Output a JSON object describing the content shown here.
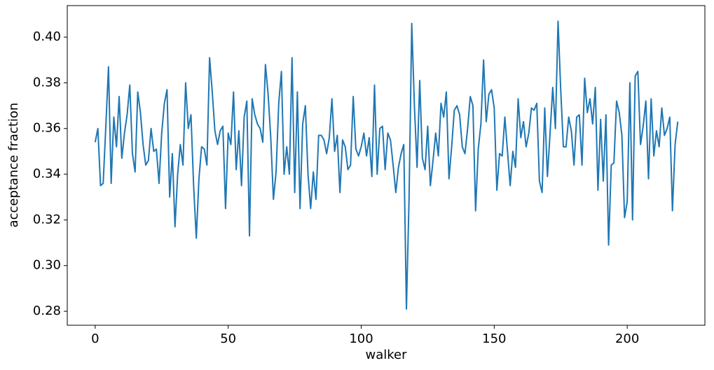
{
  "chart_data": {
    "type": "line",
    "xlabel": "walker",
    "ylabel": "acceptance fraction",
    "x": [
      0,
      1,
      2,
      3,
      4,
      5,
      6,
      7,
      8,
      9,
      10,
      11,
      12,
      13,
      14,
      15,
      16,
      17,
      18,
      19,
      20,
      21,
      22,
      23,
      24,
      25,
      26,
      27,
      28,
      29,
      30,
      31,
      32,
      33,
      34,
      35,
      36,
      37,
      38,
      39,
      40,
      41,
      42,
      43,
      44,
      45,
      46,
      47,
      48,
      49,
      50,
      51,
      52,
      53,
      54,
      55,
      56,
      57,
      58,
      59,
      60,
      61,
      62,
      63,
      64,
      65,
      66,
      67,
      68,
      69,
      70,
      71,
      72,
      73,
      74,
      75,
      76,
      77,
      78,
      79,
      80,
      81,
      82,
      83,
      84,
      85,
      86,
      87,
      88,
      89,
      90,
      91,
      92,
      93,
      94,
      95,
      96,
      97,
      98,
      99,
      100,
      101,
      102,
      103,
      104,
      105,
      106,
      107,
      108,
      109,
      110,
      111,
      112,
      113,
      114,
      115,
      116,
      117,
      118,
      119,
      120,
      121,
      122,
      123,
      124,
      125,
      126,
      127,
      128,
      129,
      130,
      131,
      132,
      133,
      134,
      135,
      136,
      137,
      138,
      139,
      140,
      141,
      142,
      143,
      144,
      145,
      146,
      147,
      148,
      149,
      150,
      151,
      152,
      153,
      154,
      155,
      156,
      157,
      158,
      159,
      160,
      161,
      162,
      163,
      164,
      165,
      166,
      167,
      168,
      169,
      170,
      171,
      172,
      173,
      174,
      175,
      176,
      177,
      178,
      179,
      180,
      181,
      182,
      183,
      184,
      185,
      186,
      187,
      188,
      189,
      190,
      191,
      192,
      193,
      194,
      195,
      196,
      197,
      198,
      199,
      200,
      201,
      202,
      203,
      204,
      205,
      206,
      207,
      208,
      209,
      210,
      211,
      212,
      213,
      214,
      215,
      216,
      217,
      218,
      219
    ],
    "series": [
      {
        "color": "#1f77b4",
        "values": [
          0.354,
          0.36,
          0.335,
          0.336,
          0.361,
          0.387,
          0.336,
          0.365,
          0.352,
          0.374,
          0.347,
          0.358,
          0.366,
          0.379,
          0.349,
          0.341,
          0.376,
          0.367,
          0.353,
          0.344,
          0.346,
          0.36,
          0.35,
          0.351,
          0.336,
          0.358,
          0.371,
          0.377,
          0.33,
          0.349,
          0.317,
          0.34,
          0.353,
          0.344,
          0.38,
          0.36,
          0.366,
          0.335,
          0.312,
          0.338,
          0.352,
          0.351,
          0.344,
          0.391,
          0.376,
          0.359,
          0.353,
          0.359,
          0.361,
          0.325,
          0.358,
          0.353,
          0.376,
          0.342,
          0.359,
          0.335,
          0.365,
          0.372,
          0.313,
          0.373,
          0.366,
          0.362,
          0.36,
          0.354,
          0.388,
          0.375,
          0.356,
          0.329,
          0.341,
          0.371,
          0.385,
          0.34,
          0.352,
          0.34,
          0.391,
          0.332,
          0.376,
          0.325,
          0.362,
          0.37,
          0.34,
          0.325,
          0.341,
          0.329,
          0.357,
          0.357,
          0.355,
          0.349,
          0.356,
          0.373,
          0.35,
          0.357,
          0.332,
          0.355,
          0.352,
          0.342,
          0.344,
          0.374,
          0.351,
          0.348,
          0.352,
          0.358,
          0.348,
          0.356,
          0.339,
          0.379,
          0.34,
          0.36,
          0.361,
          0.342,
          0.358,
          0.355,
          0.344,
          0.332,
          0.343,
          0.349,
          0.353,
          0.281,
          0.33,
          0.406,
          0.37,
          0.343,
          0.381,
          0.347,
          0.342,
          0.361,
          0.335,
          0.346,
          0.358,
          0.348,
          0.371,
          0.365,
          0.376,
          0.338,
          0.352,
          0.368,
          0.37,
          0.366,
          0.352,
          0.349,
          0.36,
          0.374,
          0.37,
          0.324,
          0.351,
          0.362,
          0.39,
          0.363,
          0.375,
          0.377,
          0.369,
          0.333,
          0.349,
          0.348,
          0.365,
          0.35,
          0.335,
          0.35,
          0.343,
          0.373,
          0.356,
          0.363,
          0.352,
          0.358,
          0.369,
          0.368,
          0.371,
          0.337,
          0.332,
          0.369,
          0.339,
          0.358,
          0.378,
          0.36,
          0.407,
          0.377,
          0.352,
          0.352,
          0.365,
          0.359,
          0.344,
          0.365,
          0.366,
          0.344,
          0.382,
          0.367,
          0.373,
          0.362,
          0.378,
          0.333,
          0.364,
          0.337,
          0.366,
          0.309,
          0.344,
          0.345,
          0.372,
          0.367,
          0.357,
          0.321,
          0.328,
          0.38,
          0.32,
          0.383,
          0.385,
          0.353,
          0.361,
          0.372,
          0.338,
          0.373,
          0.348,
          0.359,
          0.352,
          0.369,
          0.357,
          0.36,
          0.365,
          0.324,
          0.353,
          0.363
        ]
      }
    ],
    "xlim": [
      -10.5,
      229.2
    ],
    "ylim": [
      0.2739,
      0.4138
    ],
    "xticks": [
      0,
      50,
      100,
      150,
      200
    ],
    "yticks": [
      0.28,
      {
        "value": 0.3,
        "label": "0.30"
      },
      0.32,
      0.34,
      0.36,
      0.38,
      {
        "value": 0.4,
        "label": "0.40"
      }
    ]
  }
}
